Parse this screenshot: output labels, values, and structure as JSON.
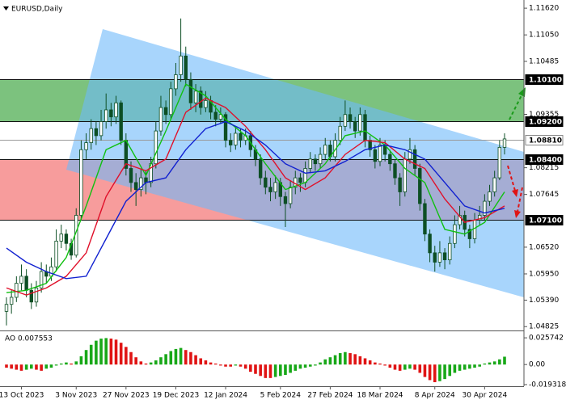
{
  "chart_data": [
    {
      "type": "candlestick",
      "title": "EURUSD,Daily",
      "categories": [
        null,
        null,
        null,
        "13 Oct 2023",
        null,
        null,
        null,
        null,
        null,
        null,
        null,
        null,
        null,
        null,
        "3 Nov 2023",
        null,
        null,
        null,
        null,
        null,
        null,
        null,
        null,
        null,
        "27 Nov 2023",
        null,
        null,
        null,
        null,
        null,
        null,
        null,
        null,
        null,
        "19 Dec 2023",
        null,
        null,
        null,
        null,
        null,
        null,
        null,
        null,
        null,
        "12 Jan 2024",
        null,
        null,
        null,
        null,
        null,
        null,
        null,
        null,
        null,
        null,
        "5 Feb 2024",
        null,
        null,
        null,
        null,
        null,
        null,
        null,
        null,
        null,
        "27 Feb 2024",
        null,
        null,
        null,
        null,
        null,
        null,
        null,
        null,
        null,
        "18 Mar 2024",
        null,
        null,
        null,
        null,
        null,
        null,
        null,
        null,
        null,
        null,
        "8 Apr 2024",
        null,
        null,
        null,
        null,
        null,
        null,
        null,
        null,
        null,
        "30 Apr 2024",
        null,
        null,
        null,
        null
      ],
      "ohlc": [
        [
          1.0515,
          1.0545,
          1.0485,
          1.053
        ],
        [
          1.053,
          1.056,
          1.051,
          1.0545
        ],
        [
          1.0545,
          1.059,
          1.0535,
          1.0575
        ],
        [
          1.0575,
          1.0615,
          1.056,
          1.059
        ],
        [
          1.059,
          1.0605,
          1.0545,
          1.056
        ],
        [
          1.056,
          1.0575,
          1.052,
          1.0535
        ],
        [
          1.0535,
          1.058,
          1.0525,
          1.0565
        ],
        [
          1.0565,
          1.062,
          1.0555,
          1.06
        ],
        [
          1.06,
          1.0615,
          1.0575,
          1.059
        ],
        [
          1.059,
          1.063,
          1.058,
          1.061
        ],
        [
          1.061,
          1.069,
          1.06,
          1.0665
        ],
        [
          1.0665,
          1.07,
          1.065,
          1.068
        ],
        [
          1.068,
          1.069,
          1.0645,
          1.066
        ],
        [
          1.066,
          1.067,
          1.0625,
          1.0635
        ],
        [
          1.0635,
          1.0735,
          1.063,
          1.072
        ],
        [
          1.072,
          1.088,
          1.071,
          1.086
        ],
        [
          1.086,
          1.0895,
          1.084,
          1.0875
        ],
        [
          1.0875,
          1.0925,
          1.086,
          1.0905
        ],
        [
          1.0905,
          1.092,
          1.087,
          1.089
        ],
        [
          1.089,
          1.0945,
          1.088,
          1.092
        ],
        [
          1.092,
          1.098,
          1.0905,
          1.0945
        ],
        [
          1.0945,
          1.096,
          1.091,
          1.093
        ],
        [
          1.093,
          1.0975,
          1.0915,
          1.096
        ],
        [
          1.096,
          1.0965,
          1.087,
          1.088
        ],
        [
          1.088,
          1.0895,
          1.0805,
          1.082
        ],
        [
          1.082,
          1.0835,
          1.077,
          1.079
        ],
        [
          1.079,
          1.081,
          1.074,
          1.0775
        ],
        [
          1.0775,
          1.082,
          1.076,
          1.08
        ],
        [
          1.08,
          1.0815,
          1.0765,
          1.079
        ],
        [
          1.079,
          1.0845,
          1.078,
          1.083
        ],
        [
          1.083,
          1.092,
          1.082,
          1.09
        ],
        [
          1.09,
          1.0975,
          1.089,
          1.095
        ],
        [
          1.095,
          1.0965,
          1.0915,
          1.0935
        ],
        [
          1.0935,
          1.1005,
          1.0925,
          1.099
        ],
        [
          1.099,
          1.1045,
          1.0975,
          1.102
        ],
        [
          1.102,
          1.114,
          1.1005,
          1.106
        ],
        [
          1.106,
          1.108,
          1.0995,
          1.101
        ],
        [
          1.101,
          1.1025,
          1.0945,
          1.096
        ],
        [
          1.096,
          1.1,
          1.094,
          1.0985
        ],
        [
          1.0985,
          1.0995,
          1.0935,
          1.095
        ],
        [
          1.095,
          1.0985,
          1.094,
          1.0965
        ],
        [
          1.0965,
          1.0975,
          1.0925,
          1.094
        ],
        [
          1.094,
          1.0955,
          1.091,
          1.0925
        ],
        [
          1.0925,
          1.095,
          1.0915,
          1.0935
        ],
        [
          1.0935,
          1.094,
          1.0865,
          1.088
        ],
        [
          1.088,
          1.0895,
          1.0855,
          1.087
        ],
        [
          1.087,
          1.091,
          1.086,
          1.0895
        ],
        [
          1.0895,
          1.0905,
          1.0865,
          1.088
        ],
        [
          1.088,
          1.0905,
          1.087,
          1.089
        ],
        [
          1.089,
          1.09,
          1.0845,
          1.086
        ],
        [
          1.086,
          1.087,
          1.0825,
          1.084
        ],
        [
          1.084,
          1.085,
          1.0785,
          1.08
        ],
        [
          1.08,
          1.0815,
          1.0765,
          1.078
        ],
        [
          1.078,
          1.08,
          1.075,
          1.077
        ],
        [
          1.077,
          1.0805,
          1.0755,
          1.079
        ],
        [
          1.079,
          1.08,
          1.074,
          1.076
        ],
        [
          1.076,
          1.077,
          1.0695,
          1.0745
        ],
        [
          1.0745,
          1.0795,
          1.0735,
          1.078
        ],
        [
          1.078,
          1.0815,
          1.0765,
          1.08
        ],
        [
          1.08,
          1.081,
          1.077,
          1.079
        ],
        [
          1.079,
          1.0835,
          1.078,
          1.082
        ],
        [
          1.082,
          1.0855,
          1.081,
          1.084
        ],
        [
          1.084,
          1.085,
          1.0815,
          1.083
        ],
        [
          1.083,
          1.0865,
          1.082,
          1.085
        ],
        [
          1.085,
          1.0885,
          1.084,
          1.087
        ],
        [
          1.087,
          1.088,
          1.0835,
          1.0845
        ],
        [
          1.0845,
          1.0895,
          1.0835,
          1.088
        ],
        [
          1.088,
          1.093,
          1.087,
          1.091
        ],
        [
          1.091,
          1.0965,
          1.09,
          1.0935
        ],
        [
          1.0935,
          1.095,
          1.0905,
          1.092
        ],
        [
          1.092,
          1.093,
          1.0885,
          1.09
        ],
        [
          1.09,
          1.095,
          1.089,
          1.0935
        ],
        [
          1.0935,
          1.0945,
          1.0865,
          1.088
        ],
        [
          1.088,
          1.089,
          1.0845,
          1.086
        ],
        [
          1.086,
          1.087,
          1.082,
          1.0835
        ],
        [
          1.0835,
          1.0885,
          1.0825,
          1.087
        ],
        [
          1.087,
          1.088,
          1.0835,
          1.085
        ],
        [
          1.085,
          1.086,
          1.0815,
          1.083
        ],
        [
          1.083,
          1.084,
          1.0785,
          1.08
        ],
        [
          1.08,
          1.081,
          1.074,
          1.077
        ],
        [
          1.077,
          1.0855,
          1.076,
          1.084
        ],
        [
          1.084,
          1.0885,
          1.083,
          1.086
        ],
        [
          1.086,
          1.087,
          1.0805,
          1.082
        ],
        [
          1.082,
          1.083,
          1.073,
          1.0745
        ],
        [
          1.0745,
          1.0755,
          1.0665,
          1.068
        ],
        [
          1.068,
          1.069,
          1.062,
          1.064
        ],
        [
          1.064,
          1.0655,
          1.06,
          1.062
        ],
        [
          1.062,
          1.0665,
          1.061,
          1.064
        ],
        [
          1.064,
          1.065,
          1.0605,
          1.0625
        ],
        [
          1.0625,
          1.0675,
          1.0615,
          1.066
        ],
        [
          1.066,
          1.072,
          1.065,
          1.07
        ],
        [
          1.07,
          1.074,
          1.069,
          1.072
        ],
        [
          1.072,
          1.073,
          1.0675,
          1.069
        ],
        [
          1.069,
          1.07,
          1.065,
          1.067
        ],
        [
          1.067,
          1.0725,
          1.066,
          1.071
        ],
        [
          1.071,
          1.074,
          1.07,
          1.072
        ],
        [
          1.072,
          1.0765,
          1.071,
          1.075
        ],
        [
          1.075,
          1.0785,
          1.074,
          1.077
        ],
        [
          1.077,
          1.0815,
          1.076,
          1.08
        ],
        [
          1.08,
          1.088,
          1.0795,
          1.0865
        ],
        [
          1.0865,
          1.0895,
          1.085,
          1.0883
        ]
      ],
      "candle_color": "#0d4f24",
      "lines": [
        {
          "color": "#10c010",
          "x": [
            0,
            4,
            8,
            12,
            16,
            20,
            24,
            28,
            32,
            36,
            40,
            44,
            48,
            52,
            56,
            60,
            64,
            68,
            72,
            76,
            80,
            84,
            88,
            92,
            96,
            100
          ],
          "values": [
            1.0555,
            1.056,
            1.0575,
            1.063,
            1.074,
            1.086,
            1.088,
            1.0805,
            1.09,
            1.1,
            1.0975,
            1.0925,
            1.089,
            1.083,
            1.0775,
            1.079,
            1.083,
            1.089,
            1.09,
            1.087,
            1.082,
            1.079,
            1.069,
            1.068,
            1.0705,
            1.077
          ]
        },
        {
          "color": "#e0102a",
          "x": [
            0,
            4,
            8,
            12,
            16,
            20,
            24,
            28,
            32,
            36,
            40,
            44,
            48,
            52,
            56,
            60,
            64,
            68,
            72,
            76,
            80,
            84,
            88,
            92,
            96,
            100
          ],
          "values": [
            1.0565,
            1.055,
            1.0565,
            1.059,
            1.064,
            1.076,
            1.083,
            1.0815,
            1.084,
            1.094,
            1.097,
            1.095,
            1.091,
            1.086,
            1.08,
            1.0775,
            1.08,
            1.085,
            1.088,
            1.0875,
            1.084,
            1.082,
            1.0755,
            1.0705,
            1.0715,
            1.074
          ]
        },
        {
          "color": "#1020d0",
          "x": [
            0,
            4,
            8,
            12,
            16,
            20,
            24,
            28,
            32,
            36,
            40,
            44,
            48,
            52,
            56,
            60,
            64,
            68,
            72,
            76,
            80,
            84,
            88,
            92,
            96,
            100
          ],
          "values": [
            1.065,
            1.062,
            1.06,
            1.0585,
            1.059,
            1.067,
            1.075,
            1.079,
            1.08,
            1.086,
            1.0905,
            1.092,
            1.09,
            1.087,
            1.083,
            1.081,
            1.0815,
            1.0835,
            1.086,
            1.087,
            1.086,
            1.084,
            1.079,
            1.074,
            1.0725,
            1.0735
          ]
        }
      ],
      "zones": [
        {
          "low": 1.092,
          "high": 1.101,
          "color": "#7cc27e"
        },
        {
          "low": 1.071,
          "high": 1.084,
          "color": "#f79c9c"
        }
      ],
      "levels": [
        {
          "value": 1.101,
          "label": "1.10100",
          "style": "dark"
        },
        {
          "value": 1.092,
          "label": "1.09200",
          "style": "dark"
        },
        {
          "value": 1.0881,
          "label": "1.08810",
          "style": "light"
        },
        {
          "value": 1.084,
          "label": "1.08400",
          "style": "dark"
        },
        {
          "value": 1.071,
          "label": "1.07100",
          "style": "dark"
        }
      ],
      "ylim": [
        1.0476,
        1.1176
      ],
      "yticks": [
        {
          "value": 1.1162,
          "label": "1.11620"
        },
        {
          "value": 1.1105,
          "label": "1.11050"
        },
        1.10485,
        1.09355,
        1.08215,
        1.07645,
        {
          "value": 1.0652,
          "label": "1.06520"
        },
        {
          "value": 1.0595,
          "label": "1.05950"
        },
        {
          "value": 1.0539,
          "label": "1.05390"
        },
        1.04825
      ]
    },
    {
      "type": "bar",
      "title": "AO 0.007553",
      "values": [
        -0.003,
        -0.004,
        -0.005,
        -0.006,
        -0.005,
        -0.004,
        -0.005,
        -0.006,
        -0.004,
        -0.003,
        -0.001,
        0.001,
        0.002,
        0.001,
        0.003,
        0.008,
        0.014,
        0.019,
        0.023,
        0.025,
        0.0255,
        0.025,
        0.024,
        0.021,
        0.017,
        0.012,
        0.007,
        0.003,
        0.001,
        0.002,
        0.004,
        0.007,
        0.01,
        0.013,
        0.015,
        0.016,
        0.014,
        0.012,
        0.009,
        0.006,
        0.004,
        0.002,
        0.001,
        -0.001,
        -0.002,
        -0.002,
        -0.001,
        -0.002,
        -0.004,
        -0.007,
        -0.009,
        -0.011,
        -0.013,
        -0.013,
        -0.012,
        -0.011,
        -0.01,
        -0.008,
        -0.006,
        -0.004,
        -0.003,
        -0.002,
        -0.001,
        0.002,
        0.005,
        0.007,
        0.009,
        0.011,
        0.012,
        0.011,
        0.01,
        0.008,
        0.006,
        0.004,
        0.002,
        0.001,
        -0.001,
        -0.003,
        -0.005,
        -0.006,
        -0.005,
        -0.004,
        -0.005,
        -0.008,
        -0.012,
        -0.015,
        -0.017,
        -0.016,
        -0.014,
        -0.011,
        -0.008,
        -0.006,
        -0.005,
        -0.004,
        -0.003,
        -0.002,
        0.001,
        0.002,
        0.003,
        0.005,
        0.007553
      ],
      "up_color": "#18a818",
      "down_color": "#e01414",
      "ylim": [
        -0.0209,
        0.0305
      ],
      "yticks": [
        0.025742,
        {
          "value": 0,
          "label": "0.00"
        },
        -0.019318
      ]
    }
  ]
}
